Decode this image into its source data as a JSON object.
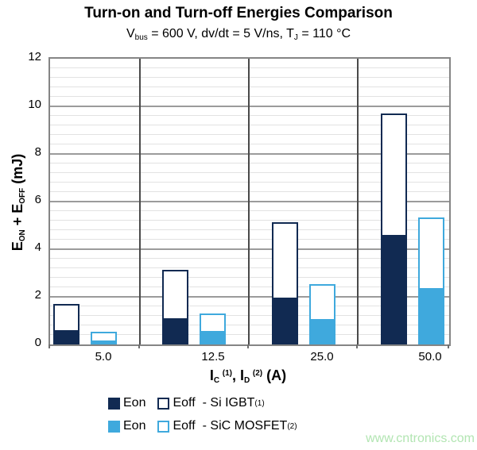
{
  "header": {
    "title": "Turn-on and Turn-off Energies Comparison",
    "subtitle_parts": {
      "p1": "V",
      "sub1": "bus",
      "p2": " = 600 V, dv/dt = 5 V/ns, T",
      "sub2": "J",
      "p3": " = 110 °C"
    }
  },
  "y_axis": {
    "label_parts": {
      "p1": "E",
      "sub1": "ON",
      "p2": " + E",
      "sub2": "OFF",
      "p3": " (mJ)"
    },
    "tick_labels": [
      "0",
      "2",
      "4",
      "6",
      "8",
      "10",
      "12"
    ]
  },
  "x_axis": {
    "label_parts": {
      "p1": "I",
      "sub1": "C",
      "sup1": "(1)",
      "p2": ", I",
      "sub2": "D",
      "sup2": "(2)",
      "p3": " (A)"
    },
    "tick_labels": [
      "5.0",
      "12.5",
      "25.0",
      "50.0"
    ]
  },
  "legend": {
    "rows": [
      {
        "eon_label": "Eon",
        "eoff_label": "Eoff",
        "device": "- Si IGBT",
        "sup": "(1)",
        "color": "#112a52"
      },
      {
        "eon_label": "Eon",
        "eoff_label": "Eoff",
        "device": "- SiC MOSFET",
        "sup": "(2)",
        "color": "#3fa9dd"
      }
    ]
  },
  "watermark": {
    "text": "www.cntronics.com",
    "color": "#b2e5b2"
  },
  "colors": {
    "si_igbt": "#112a52",
    "sic_mosfet": "#3fa9dd",
    "major_grid": "#9b9b9b",
    "minor_grid": "#e2e2e2",
    "separator": "#4a4a4a",
    "axis_border": "#858585"
  },
  "chart_data": {
    "type": "bar",
    "stacked": true,
    "title": "Turn-on and Turn-off Energies Comparison",
    "subtitle": "Vbus = 600 V, dv/dt = 5 V/ns, TJ = 110 °C",
    "xlabel": "IC (1), ID (2) (A)",
    "ylabel": "EON + EOFF (mJ)",
    "categories": [
      "5.0",
      "12.5",
      "25.0",
      "50.0"
    ],
    "series": [
      {
        "name": "Eon - Si IGBT",
        "style": "filled",
        "color": "#112a52",
        "values": [
          0.65,
          1.15,
          2.0,
          4.65
        ]
      },
      {
        "name": "Eoff - Si IGBT",
        "style": "hollow",
        "color": "#112a52",
        "values": [
          1.05,
          2.0,
          3.15,
          5.05
        ]
      },
      {
        "name": "Eon - SiC MOSFET",
        "style": "filled",
        "color": "#3fa9dd",
        "values": [
          0.2,
          0.6,
          1.1,
          2.4
        ]
      },
      {
        "name": "Eoff - SiC MOSFET",
        "style": "hollow",
        "color": "#3fa9dd",
        "values": [
          0.35,
          0.7,
          1.45,
          2.95
        ]
      }
    ],
    "totals": {
      "si_igbt": [
        1.7,
        3.15,
        5.15,
        9.7
      ],
      "sic_mosfet": [
        0.55,
        1.3,
        2.55,
        5.35
      ]
    },
    "ylim": [
      0,
      12
    ],
    "y_major_step": 2,
    "y_minor_step": 0.4,
    "grid": "on",
    "legend_position": "bottom"
  }
}
